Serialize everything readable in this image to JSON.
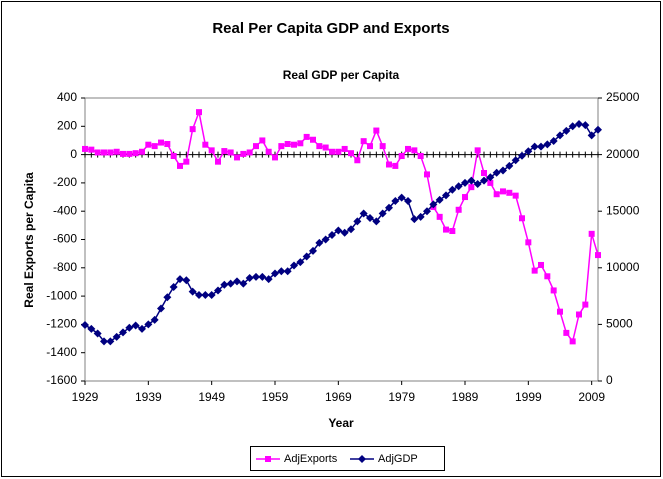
{
  "chart_data": {
    "type": "line",
    "title": "Real Per Capita GDP and Exports",
    "subtitle": "Real GDP per Capita",
    "y_label": "Real Exports per Capita",
    "x_label": "Year",
    "x": [
      1929,
      1930,
      1931,
      1932,
      1933,
      1934,
      1935,
      1936,
      1937,
      1938,
      1939,
      1940,
      1941,
      1942,
      1943,
      1944,
      1945,
      1946,
      1947,
      1948,
      1949,
      1950,
      1951,
      1952,
      1953,
      1954,
      1955,
      1956,
      1957,
      1958,
      1959,
      1960,
      1961,
      1962,
      1963,
      1964,
      1965,
      1966,
      1967,
      1968,
      1969,
      1970,
      1971,
      1972,
      1973,
      1974,
      1975,
      1976,
      1977,
      1978,
      1979,
      1980,
      1981,
      1982,
      1983,
      1984,
      1985,
      1986,
      1987,
      1988,
      1989,
      1990,
      1991,
      1992,
      1993,
      1994,
      1995,
      1996,
      1997,
      1998,
      1999,
      2000,
      2001,
      2002,
      2003,
      2004,
      2005,
      2006,
      2007,
      2008,
      2009,
      2010
    ],
    "series": [
      {
        "name": "AdjExports",
        "color": "#ff00ff",
        "marker": "square",
        "values": [
          40,
          35,
          15,
          15,
          15,
          20,
          5,
          5,
          10,
          20,
          70,
          60,
          85,
          75,
          -10,
          -80,
          -50,
          180,
          300,
          70,
          30,
          -50,
          25,
          15,
          -20,
          5,
          15,
          60,
          100,
          20,
          -20,
          60,
          75,
          70,
          80,
          125,
          105,
          60,
          50,
          20,
          20,
          40,
          10,
          -40,
          95,
          60,
          170,
          60,
          -70,
          -80,
          -10,
          40,
          30,
          -10,
          -140,
          -370,
          -440,
          -530,
          -540,
          -390,
          -300,
          -230,
          30,
          -130,
          -200,
          -280,
          -260,
          -270,
          -290,
          -450,
          -620,
          -820,
          -780,
          -860,
          -960,
          -1110,
          -1260,
          -1320,
          -1130,
          -1060,
          -560,
          -710
        ]
      },
      {
        "name": "AdjGDP",
        "color": "#000080",
        "marker": "diamond",
        "axis": "y2",
        "values": [
          4950,
          4600,
          4200,
          3500,
          3500,
          3900,
          4300,
          4700,
          4900,
          4600,
          5000,
          5400,
          6400,
          7400,
          8300,
          9000,
          8900,
          7900,
          7600,
          7600,
          7600,
          8000,
          8500,
          8600,
          8800,
          8600,
          9100,
          9200,
          9200,
          9000,
          9500,
          9700,
          9700,
          10200,
          10500,
          11000,
          11500,
          12200,
          12500,
          12900,
          13300,
          13100,
          13400,
          14100,
          14800,
          14400,
          14100,
          14800,
          15300,
          15900,
          16200,
          15900,
          14300,
          14500,
          15000,
          15600,
          16000,
          16400,
          16900,
          17200,
          17500,
          17700,
          17400,
          17700,
          18000,
          18400,
          18600,
          19000,
          19500,
          19900,
          20300,
          20700,
          20700,
          20900,
          21200,
          21700,
          22100,
          22500,
          22700,
          22600,
          21700,
          22200
        ]
      }
    ],
    "xlim": [
      1929,
      2010
    ],
    "xticks": [
      1929,
      1939,
      1949,
      1959,
      1969,
      1979,
      1989,
      1999,
      2009
    ],
    "ylim": [
      -1600,
      400
    ],
    "yticks": [
      -1600,
      -1400,
      -1200,
      -1000,
      -800,
      -600,
      -400,
      -200,
      0,
      200,
      400
    ],
    "y2lim": [
      0,
      25000
    ],
    "y2ticks": [
      0,
      5000,
      10000,
      15000,
      20000,
      25000
    ],
    "legend": "bottom"
  }
}
